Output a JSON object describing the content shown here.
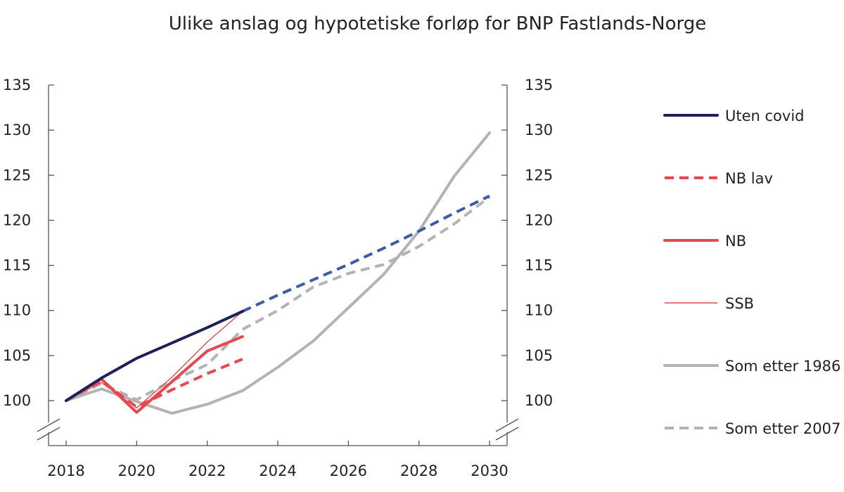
{
  "chart_data": {
    "type": "line",
    "title": "Ulike anslag og hypotetiske forløp for BNP Fastlands-Norge",
    "xlabel": "",
    "ylabel": "",
    "xlim": [
      2018,
      2030
    ],
    "ylim": [
      100,
      135
    ],
    "x_ticks": [
      "2018",
      "2020",
      "2022",
      "2024",
      "2026",
      "2028",
      "2030"
    ],
    "y_ticks": [
      "100",
      "105",
      "110",
      "115",
      "120",
      "125",
      "130",
      "135"
    ],
    "axis_break": true,
    "grid": false,
    "legend_position": "right",
    "series": [
      {
        "name": "Uten covid",
        "color": "#1f1f5c",
        "dash": "solid",
        "x": [
          2018,
          2019,
          2020,
          2021,
          2022,
          2023
        ],
        "y": [
          100,
          102.5,
          104.7,
          106.4,
          108.1,
          109.9
        ]
      },
      {
        "name": "",
        "color": "#3c5aa6",
        "dash": "dashed",
        "x": [
          2023,
          2024,
          2025,
          2026,
          2027,
          2028,
          2029,
          2030
        ],
        "y": [
          109.9,
          111.7,
          113.4,
          115.1,
          116.9,
          118.8,
          120.8,
          122.7
        ]
      },
      {
        "name": "NB lav",
        "color": "#e8474e",
        "dash": "dashed",
        "x": [
          2018,
          2019,
          2020,
          2021,
          2022,
          2023
        ],
        "y": [
          100,
          102.2,
          99.3,
          101.2,
          103.0,
          104.6
        ]
      },
      {
        "name": "NB",
        "color": "#e8474e",
        "dash": "solid",
        "x": [
          2018,
          2019,
          2020,
          2021,
          2022,
          2023
        ],
        "y": [
          100,
          102.4,
          98.7,
          102.1,
          105.5,
          107.1
        ]
      },
      {
        "name": "SSB",
        "color": "#e8474e",
        "dash": "thin",
        "x": [
          2018,
          2019,
          2020,
          2021,
          2022,
          2023
        ],
        "y": [
          100,
          102.0,
          99.2,
          102.6,
          106.5,
          109.9
        ]
      },
      {
        "name": "Som etter 1986",
        "color": "#b3b3b6",
        "dash": "solid",
        "x": [
          2018,
          2019,
          2020,
          2021,
          2022,
          2023,
          2024,
          2025,
          2026,
          2027,
          2028,
          2029,
          2030
        ],
        "y": [
          100,
          101.3,
          99.9,
          98.6,
          99.6,
          101.1,
          103.7,
          106.6,
          110.3,
          114.0,
          118.8,
          124.9,
          129.7
        ]
      },
      {
        "name": "Som etter 2007",
        "color": "#b3b3b6",
        "dash": "dashed",
        "x": [
          2018,
          2019,
          2020,
          2021,
          2022,
          2023,
          2024,
          2025,
          2026,
          2027,
          2028,
          2029,
          2030
        ],
        "y": [
          100,
          101.9,
          100.1,
          102.2,
          104.0,
          107.9,
          110.0,
          112.6,
          114.1,
          115.1,
          117.1,
          119.6,
          122.6
        ]
      }
    ],
    "legend": [
      {
        "label": "Uten covid",
        "color": "#1f1f5c",
        "dash": "solid"
      },
      {
        "label": "NB lav",
        "color": "#e8474e",
        "dash": "dashed"
      },
      {
        "label": "NB",
        "color": "#e8474e",
        "dash": "solid"
      },
      {
        "label": "SSB",
        "color": "#e8474e",
        "dash": "thin"
      },
      {
        "label": "Som etter 1986",
        "color": "#b3b3b6",
        "dash": "solid"
      },
      {
        "label": "Som etter 2007",
        "color": "#b3b3b6",
        "dash": "dashed"
      }
    ]
  }
}
